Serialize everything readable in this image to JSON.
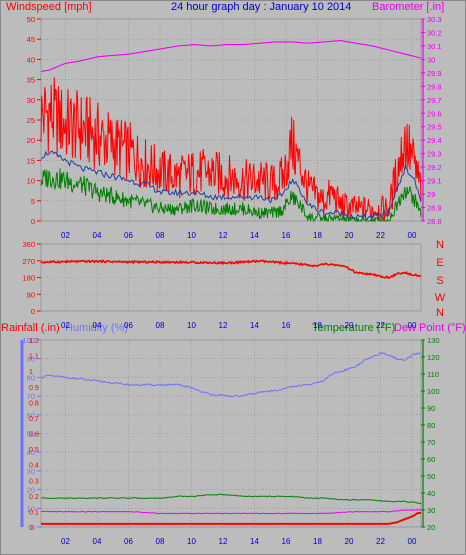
{
  "header": {
    "wind_label": "Windspeed [mph]",
    "title": "24 hour graph day : January 10 2014",
    "baro_label": "Barometer [.in]"
  },
  "panel3_header": {
    "rain_label": "Rainfall (.in)",
    "humidity_label": "Humidity (%)",
    "temp_label": "Temperature (°F)",
    "dew_label": "Dew Point (°F)"
  },
  "colors": {
    "background": "#bcbcbc",
    "wind": "#ff0000",
    "wind_avg": "#1f3f9f",
    "wind_low": "#008000",
    "barometer": "#ee00ee",
    "direction": "#ff0000",
    "rain": "#ff0000",
    "humidity": "#7070ff",
    "temperature": "#008000",
    "dewpoint": "#ee00ee",
    "title": "#0000cc",
    "tick_labels_x": "#0000cc",
    "grid": "#8c8c8c"
  },
  "chart_data": [
    {
      "type": "line",
      "title": "24 hour graph day : January 10 2014",
      "x_tick_labels": [
        "02",
        "04",
        "06",
        "08",
        "10",
        "12",
        "14",
        "16",
        "18",
        "20",
        "22",
        "00"
      ],
      "x_range_hours": [
        0.5,
        24
      ],
      "left_axis": {
        "label": "Windspeed [mph]",
        "ylim": [
          0,
          50
        ],
        "ticks": [
          "0",
          "5",
          "10",
          "15",
          "20",
          "25",
          "30",
          "35",
          "40",
          "45",
          "50"
        ]
      },
      "right_axis": {
        "label": "Barometer [.in]",
        "ylim": [
          28.8,
          30.3
        ],
        "ticks": [
          "28.8",
          "28.9",
          "29",
          "29.1",
          "29.2",
          "29.3",
          "29.4",
          "29.5",
          "29.6",
          "29.7",
          "29.8",
          "29.9",
          "30",
          "30.1",
          "30.2",
          "30.3"
        ]
      },
      "grid": true,
      "series": [
        {
          "name": "Windspeed [mph]",
          "axis": "left",
          "color": "#ff0000",
          "x": [
            0.5,
            1,
            1.5,
            2,
            3,
            4,
            5,
            6,
            7,
            8,
            9,
            10,
            11,
            12,
            13,
            14,
            15,
            15.5,
            16,
            16.5,
            17,
            18,
            18.5,
            19,
            20,
            21,
            22,
            22.5,
            23,
            23.5,
            24
          ],
          "values": [
            26,
            27,
            25,
            24,
            23,
            21,
            19,
            17,
            14,
            12,
            11,
            12,
            12,
            11,
            10,
            10,
            9,
            11,
            19,
            14,
            8,
            5,
            7,
            4,
            3,
            3,
            3,
            12,
            20,
            15,
            8
          ]
        },
        {
          "axis": "left",
          "color": "#1f3f9f",
          "x": [
            0.5,
            1,
            2,
            3,
            4,
            5,
            6,
            7,
            8,
            9,
            10,
            11,
            12,
            13,
            14,
            15,
            15.5,
            16,
            16.5,
            17,
            18,
            19,
            20,
            21,
            22,
            22.5,
            23,
            23.5,
            24
          ],
          "values": [
            16,
            17,
            15,
            13,
            12,
            11,
            10,
            9,
            7,
            7,
            7,
            6,
            6,
            6,
            6,
            5,
            7,
            10,
            8,
            4,
            2,
            2,
            1,
            1,
            2,
            8,
            13,
            11,
            5
          ]
        },
        {
          "axis": "left",
          "color": "#008000",
          "x": [
            0.5,
            1,
            2,
            3,
            4,
            5,
            6,
            7,
            8,
            9,
            10,
            11,
            12,
            13,
            14,
            15,
            15.5,
            16,
            16.5,
            17,
            18,
            19,
            20,
            21,
            22,
            22.5,
            23,
            23.5,
            24
          ],
          "values": [
            10,
            11,
            10,
            9,
            7,
            6,
            5,
            4,
            3,
            3,
            4,
            3,
            3,
            3,
            2,
            2,
            3,
            6,
            4,
            1,
            0.5,
            0.5,
            0,
            0,
            0,
            4,
            8,
            6,
            2
          ]
        },
        {
          "name": "Barometer [.in]",
          "axis": "right",
          "color": "#ee00ee",
          "x": [
            0.5,
            1,
            2,
            3,
            4,
            5,
            6,
            7,
            8,
            9,
            10,
            11,
            12,
            13,
            14,
            15,
            16,
            17,
            18,
            19,
            20,
            21,
            22,
            23,
            24
          ],
          "values": [
            29.91,
            29.92,
            29.97,
            29.99,
            30.02,
            30.03,
            30.04,
            30.06,
            30.08,
            30.1,
            30.11,
            30.1,
            30.11,
            30.11,
            30.12,
            30.13,
            30.13,
            30.12,
            30.13,
            30.14,
            30.12,
            30.1,
            30.07,
            30.04,
            30.01
          ]
        }
      ]
    },
    {
      "type": "line",
      "x_tick_labels": [
        "02",
        "04",
        "06",
        "08",
        "10",
        "12",
        "14",
        "16",
        "18",
        "20",
        "22",
        "00"
      ],
      "left_axis": {
        "ylim": [
          0,
          360
        ],
        "ticks": [
          "0",
          "90",
          "180",
          "270",
          "360"
        ]
      },
      "right_axis": {
        "ticks": [
          "N",
          "W",
          "S",
          "E",
          "N"
        ]
      },
      "grid": true,
      "series": [
        {
          "axis": "left",
          "color": "#ff0000",
          "x": [
            0.5,
            2,
            4,
            6,
            8,
            10,
            12,
            14,
            16,
            17,
            17.5,
            18,
            19,
            19.5,
            20,
            21,
            21.5,
            22,
            22.5,
            23,
            24
          ],
          "values": [
            262,
            265,
            267,
            263,
            263,
            261,
            258,
            268,
            255,
            248,
            240,
            252,
            245,
            230,
            205,
            195,
            185,
            180,
            198,
            205,
            188
          ]
        }
      ]
    },
    {
      "type": "line",
      "x_tick_labels": [
        "02",
        "04",
        "06",
        "08",
        "10",
        "12",
        "14",
        "16",
        "18",
        "20",
        "22",
        "00"
      ],
      "left_axis": {
        "label": "Rainfall (.in)",
        "ylim": [
          0,
          1.2
        ],
        "ticks": [
          "0",
          "0.1",
          "0.2",
          "0.3",
          "0.4",
          "0.5",
          "0.6",
          "0.7",
          "0.8",
          "0.9",
          "1",
          "1.1",
          "1.2"
        ]
      },
      "humidity_axis": {
        "label": "Humidity (%)",
        "ylim": [
          0,
          100
        ],
        "ticks": [
          "0",
          "10",
          "20",
          "30",
          "40",
          "50",
          "60",
          "70",
          "80",
          "90",
          "100"
        ]
      },
      "right_axis": {
        "label": "Temperature (°F)",
        "ylim": [
          20,
          130
        ],
        "ticks": [
          "20",
          "30",
          "40",
          "50",
          "60",
          "70",
          "80",
          "90",
          "100",
          "110",
          "120",
          "130"
        ]
      },
      "grid": true,
      "series": [
        {
          "name": "Rainfall (.in)",
          "axis": "left",
          "color": "#ff0000",
          "x": [
            0.5,
            2,
            4,
            6,
            8,
            10,
            12,
            14,
            16,
            18,
            20,
            21,
            22,
            22.5,
            23,
            23.5,
            23.8,
            24
          ],
          "values": [
            0.02,
            0.02,
            0.02,
            0.02,
            0.02,
            0.02,
            0.02,
            0.02,
            0.02,
            0.02,
            0.02,
            0.02,
            0.02,
            0.03,
            0.05,
            0.07,
            0.09,
            0.09
          ]
        },
        {
          "name": "Humidity (%)",
          "axis": "humidity",
          "color": "#7070ff",
          "x": [
            0.5,
            1,
            2,
            3,
            4,
            5,
            6,
            7,
            8,
            9,
            10,
            10.5,
            11,
            12,
            13,
            14,
            15,
            16,
            17,
            18,
            18.5,
            19,
            20,
            20.5,
            21,
            21.5,
            22,
            22.5,
            23,
            23.5,
            24
          ],
          "values": [
            80,
            81,
            80,
            79,
            78,
            77,
            76,
            76,
            76,
            76,
            74,
            72,
            71,
            70,
            70,
            72,
            73,
            75,
            76,
            78,
            82,
            83,
            86,
            89,
            91,
            93,
            92,
            90,
            89,
            92,
            93
          ]
        },
        {
          "name": "Temperature (°F)",
          "axis": "right",
          "color": "#008000",
          "x": [
            0.5,
            2,
            4,
            6,
            8,
            9,
            10,
            11,
            12,
            13,
            14,
            15,
            16,
            17,
            18,
            19,
            20,
            21,
            22,
            23,
            24
          ],
          "values": [
            37,
            37,
            37,
            37,
            37,
            38,
            38,
            39,
            39,
            38,
            38,
            38,
            38,
            37,
            37,
            36,
            36,
            36,
            35,
            35,
            34
          ]
        },
        {
          "name": "Dew Point (°F)",
          "axis": "right",
          "color": "#ee00ee",
          "x": [
            0.5,
            2,
            4,
            6,
            8,
            10,
            12,
            14,
            16,
            18,
            20,
            22,
            23,
            24
          ],
          "values": [
            29,
            29,
            29,
            29,
            28,
            28,
            28,
            28,
            28,
            28,
            29,
            29,
            30,
            30
          ]
        }
      ]
    }
  ]
}
